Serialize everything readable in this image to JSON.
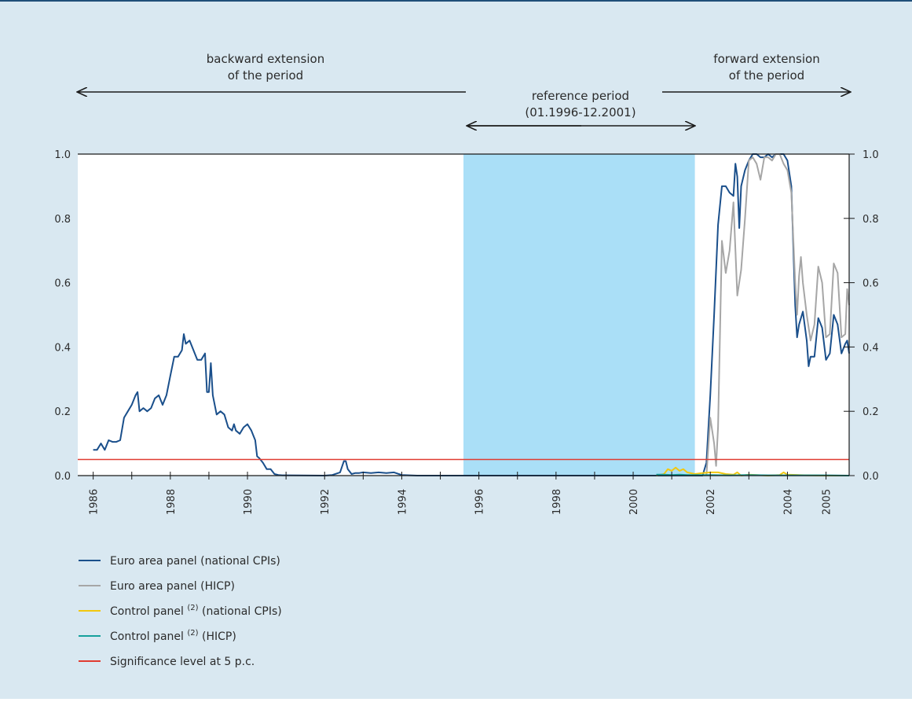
{
  "chart_data": {
    "type": "line",
    "title": "",
    "xlabel": "",
    "ylabel": "",
    "ylim": [
      0,
      1
    ],
    "xlim": [
      1985.6,
      2005.6
    ],
    "y_ticks": [
      "0.0",
      "0.2",
      "0.4",
      "0.6",
      "0.8",
      "1.0"
    ],
    "x_ticks": [
      "1986",
      "1988",
      "1990",
      "1992",
      "1994",
      "1996",
      "1998",
      "2000",
      "2002",
      "2004",
      "2005"
    ],
    "grid": false,
    "reference_period": {
      "start": 1995.6,
      "end": 2001.6,
      "color": "#aadff7"
    },
    "annotations": {
      "backward": [
        "backward extension",
        "of the period"
      ],
      "reference": [
        "reference period",
        "(01.1996-12.2001)"
      ],
      "forward": [
        "forward extension",
        "of the period"
      ]
    },
    "series": [
      {
        "name": "Euro area panel (national CPIs)",
        "color": "#1a4f8b",
        "points": [
          [
            1986.0,
            0.08
          ],
          [
            1986.1,
            0.08
          ],
          [
            1986.2,
            0.1
          ],
          [
            1986.3,
            0.08
          ],
          [
            1986.4,
            0.11
          ],
          [
            1986.5,
            0.105
          ],
          [
            1986.6,
            0.105
          ],
          [
            1986.7,
            0.11
          ],
          [
            1986.8,
            0.18
          ],
          [
            1986.9,
            0.2
          ],
          [
            1987.0,
            0.22
          ],
          [
            1987.1,
            0.25
          ],
          [
            1987.15,
            0.26
          ],
          [
            1987.2,
            0.2
          ],
          [
            1987.3,
            0.21
          ],
          [
            1987.4,
            0.2
          ],
          [
            1987.5,
            0.21
          ],
          [
            1987.6,
            0.24
          ],
          [
            1987.7,
            0.25
          ],
          [
            1987.8,
            0.22
          ],
          [
            1987.9,
            0.25
          ],
          [
            1988.0,
            0.31
          ],
          [
            1988.1,
            0.37
          ],
          [
            1988.2,
            0.37
          ],
          [
            1988.3,
            0.39
          ],
          [
            1988.35,
            0.44
          ],
          [
            1988.4,
            0.41
          ],
          [
            1988.5,
            0.42
          ],
          [
            1988.6,
            0.39
          ],
          [
            1988.7,
            0.36
          ],
          [
            1988.8,
            0.36
          ],
          [
            1988.9,
            0.38
          ],
          [
            1988.95,
            0.26
          ],
          [
            1989.0,
            0.26
          ],
          [
            1989.05,
            0.35
          ],
          [
            1989.1,
            0.25
          ],
          [
            1989.2,
            0.19
          ],
          [
            1989.3,
            0.2
          ],
          [
            1989.4,
            0.19
          ],
          [
            1989.5,
            0.15
          ],
          [
            1989.6,
            0.14
          ],
          [
            1989.65,
            0.16
          ],
          [
            1989.7,
            0.14
          ],
          [
            1989.8,
            0.13
          ],
          [
            1989.9,
            0.15
          ],
          [
            1990.0,
            0.16
          ],
          [
            1990.1,
            0.14
          ],
          [
            1990.2,
            0.11
          ],
          [
            1990.25,
            0.06
          ],
          [
            1990.3,
            0.055
          ],
          [
            1990.4,
            0.04
          ],
          [
            1990.5,
            0.02
          ],
          [
            1990.6,
            0.02
          ],
          [
            1990.7,
            0.005
          ],
          [
            1990.8,
            0.002
          ],
          [
            1990.9,
            0.001
          ],
          [
            1991.0,
            0.001
          ],
          [
            1992.0,
            0.0
          ],
          [
            1992.2,
            0.002
          ],
          [
            1992.4,
            0.01
          ],
          [
            1992.5,
            0.045
          ],
          [
            1992.55,
            0.045
          ],
          [
            1992.6,
            0.02
          ],
          [
            1992.7,
            0.005
          ],
          [
            1992.8,
            0.008
          ],
          [
            1992.9,
            0.008
          ],
          [
            1993.0,
            0.01
          ],
          [
            1993.2,
            0.008
          ],
          [
            1993.4,
            0.01
          ],
          [
            1993.6,
            0.008
          ],
          [
            1993.8,
            0.01
          ],
          [
            1994.0,
            0.002
          ],
          [
            1994.2,
            0.001
          ],
          [
            1994.4,
            0.0
          ],
          [
            1995.6,
            0.0
          ],
          [
            2001.6,
            0.0
          ],
          [
            2001.7,
            0.0
          ],
          [
            2001.8,
            0.0
          ],
          [
            2001.9,
            0.04
          ],
          [
            2002.0,
            0.25
          ],
          [
            2002.1,
            0.5
          ],
          [
            2002.2,
            0.78
          ],
          [
            2002.3,
            0.9
          ],
          [
            2002.4,
            0.9
          ],
          [
            2002.5,
            0.88
          ],
          [
            2002.6,
            0.87
          ],
          [
            2002.65,
            0.97
          ],
          [
            2002.7,
            0.93
          ],
          [
            2002.75,
            0.77
          ],
          [
            2002.8,
            0.9
          ],
          [
            2002.9,
            0.95
          ],
          [
            2003.0,
            0.98
          ],
          [
            2003.1,
            1.0
          ],
          [
            2003.2,
            1.0
          ],
          [
            2003.3,
            0.99
          ],
          [
            2003.4,
            0.99
          ],
          [
            2003.5,
            1.0
          ],
          [
            2003.6,
            0.99
          ],
          [
            2003.7,
            1.0
          ],
          [
            2003.8,
            1.0
          ],
          [
            2003.9,
            1.0
          ],
          [
            2004.0,
            0.98
          ],
          [
            2004.1,
            0.9
          ],
          [
            2004.2,
            0.53
          ],
          [
            2004.25,
            0.43
          ],
          [
            2004.3,
            0.47
          ],
          [
            2004.4,
            0.51
          ],
          [
            2004.5,
            0.42
          ],
          [
            2004.55,
            0.34
          ],
          [
            2004.6,
            0.37
          ],
          [
            2004.7,
            0.37
          ],
          [
            2004.8,
            0.49
          ],
          [
            2004.9,
            0.46
          ],
          [
            2005.0,
            0.36
          ],
          [
            2005.1,
            0.38
          ],
          [
            2005.2,
            0.5
          ],
          [
            2005.3,
            0.47
          ],
          [
            2005.4,
            0.38
          ],
          [
            2005.5,
            0.41
          ],
          [
            2005.55,
            0.42
          ],
          [
            2005.6,
            0.38
          ]
        ]
      },
      {
        "name": "Euro area panel (HICP)",
        "color": "#a6a6a6",
        "points": [
          [
            2001.9,
            0.0
          ],
          [
            2002.0,
            0.18
          ],
          [
            2002.1,
            0.1
          ],
          [
            2002.15,
            0.03
          ],
          [
            2002.2,
            0.15
          ],
          [
            2002.3,
            0.73
          ],
          [
            2002.4,
            0.63
          ],
          [
            2002.5,
            0.7
          ],
          [
            2002.6,
            0.85
          ],
          [
            2002.7,
            0.56
          ],
          [
            2002.8,
            0.64
          ],
          [
            2002.9,
            0.8
          ],
          [
            2003.0,
            0.98
          ],
          [
            2003.1,
            0.99
          ],
          [
            2003.2,
            0.97
          ],
          [
            2003.3,
            0.92
          ],
          [
            2003.4,
            0.99
          ],
          [
            2003.5,
            0.99
          ],
          [
            2003.6,
            0.98
          ],
          [
            2003.7,
            1.0
          ],
          [
            2003.8,
            1.0
          ],
          [
            2003.9,
            0.97
          ],
          [
            2004.0,
            0.95
          ],
          [
            2004.1,
            0.88
          ],
          [
            2004.2,
            0.6
          ],
          [
            2004.25,
            0.5
          ],
          [
            2004.3,
            0.62
          ],
          [
            2004.35,
            0.68
          ],
          [
            2004.4,
            0.6
          ],
          [
            2004.5,
            0.5
          ],
          [
            2004.6,
            0.42
          ],
          [
            2004.7,
            0.47
          ],
          [
            2004.8,
            0.65
          ],
          [
            2004.9,
            0.6
          ],
          [
            2005.0,
            0.43
          ],
          [
            2005.1,
            0.44
          ],
          [
            2005.2,
            0.66
          ],
          [
            2005.3,
            0.63
          ],
          [
            2005.4,
            0.43
          ],
          [
            2005.5,
            0.44
          ],
          [
            2005.55,
            0.58
          ],
          [
            2005.6,
            0.53
          ]
        ]
      },
      {
        "name": "Control panel (2) (national CPIs)",
        "color": "#f2c80f",
        "points": [
          [
            2000.6,
            0.0
          ],
          [
            2000.8,
            0.005
          ],
          [
            2000.9,
            0.02
          ],
          [
            2001.0,
            0.015
          ],
          [
            2001.1,
            0.025
          ],
          [
            2001.2,
            0.015
          ],
          [
            2001.3,
            0.02
          ],
          [
            2001.4,
            0.01
          ],
          [
            2001.6,
            0.005
          ],
          [
            2001.8,
            0.008
          ],
          [
            2002.0,
            0.01
          ],
          [
            2002.2,
            0.01
          ],
          [
            2002.4,
            0.005
          ],
          [
            2002.6,
            0.003
          ],
          [
            2002.7,
            0.01
          ],
          [
            2002.8,
            0.0
          ],
          [
            2003.0,
            0.003
          ],
          [
            2003.5,
            0.0
          ],
          [
            2003.8,
            0.002
          ],
          [
            2003.9,
            0.01
          ],
          [
            2004.0,
            0.003
          ],
          [
            2004.5,
            0.001
          ],
          [
            2005.0,
            0.0
          ],
          [
            2005.6,
            0.0
          ]
        ]
      },
      {
        "name": "Control panel (2) (HICP)",
        "color": "#16a09c",
        "points": [
          [
            2000.6,
            0.003
          ],
          [
            2000.8,
            0.003
          ],
          [
            2001.0,
            0.002
          ],
          [
            2001.2,
            0.003
          ],
          [
            2001.4,
            0.002
          ],
          [
            2001.6,
            0.002
          ],
          [
            2002.0,
            0.002
          ],
          [
            2002.5,
            0.001
          ],
          [
            2003.0,
            0.002
          ],
          [
            2003.5,
            0.001
          ],
          [
            2004.0,
            0.001
          ],
          [
            2004.5,
            0.001
          ],
          [
            2005.0,
            0.001
          ],
          [
            2005.6,
            0.0
          ]
        ]
      },
      {
        "name": "Significance level at 5 p.c.",
        "color": "#e03c31",
        "points": [
          [
            1985.6,
            0.05
          ],
          [
            2005.6,
            0.05
          ]
        ]
      }
    ]
  },
  "legend": [
    {
      "label": "Euro area panel (national CPIs)",
      "pre": "",
      "sup": "",
      "post": "",
      "color": "#1a4f8b"
    },
    {
      "label": "Euro area panel (HICP)",
      "pre": "",
      "sup": "",
      "post": "",
      "color": "#a6a6a6"
    },
    {
      "label": "",
      "pre": "Control panel ",
      "sup": "(2)",
      "post": " (national CPIs)",
      "color": "#f2c80f"
    },
    {
      "label": "",
      "pre": "Control panel ",
      "sup": "(2)",
      "post": " (HICP)",
      "color": "#16a09c"
    },
    {
      "label": "Significance level at 5 p.c.",
      "pre": "",
      "sup": "",
      "post": "",
      "color": "#e03c31"
    }
  ]
}
